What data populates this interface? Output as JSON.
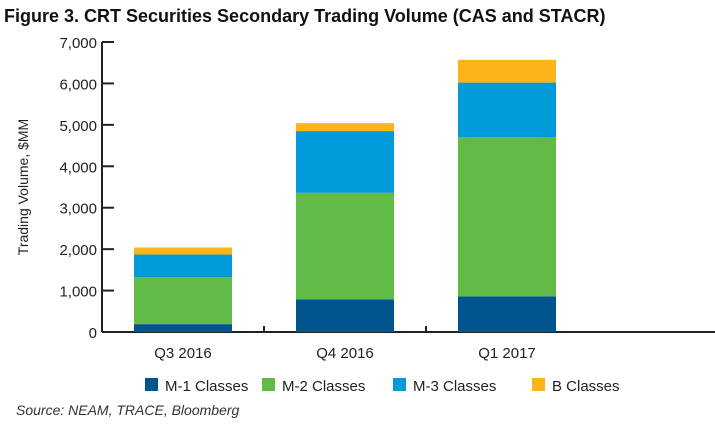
{
  "chart_data": {
    "type": "bar",
    "stacked": true,
    "title": "Figure 3. CRT Securities Secondary Trading Volume (CAS and STACR)",
    "xlabel": "",
    "ylabel": "Trading Volume, $MM",
    "ylim": [
      0,
      7000
    ],
    "yticks": [
      "0",
      "1,000",
      "2,000",
      "3,000",
      "4,000",
      "5,000",
      "6,000",
      "7,000"
    ],
    "categories": [
      "Q3 2016",
      "Q4 2016",
      "Q1 2017"
    ],
    "series": [
      {
        "name": "M-1 Classes",
        "color": "#00558c",
        "values": [
          190,
          790,
          860
        ]
      },
      {
        "name": "M-2 Classes",
        "color": "#62bb47",
        "values": [
          1130,
          2570,
          3840
        ]
      },
      {
        "name": "M-3 Classes",
        "color": "#009ad8",
        "values": [
          550,
          1490,
          1320
        ]
      },
      {
        "name": "B Classes",
        "color": "#fbb41a",
        "values": [
          170,
          190,
          550
        ]
      }
    ],
    "grid": false,
    "legend": "bottom",
    "source": "Source: NEAM, TRACE, Bloomberg"
  }
}
